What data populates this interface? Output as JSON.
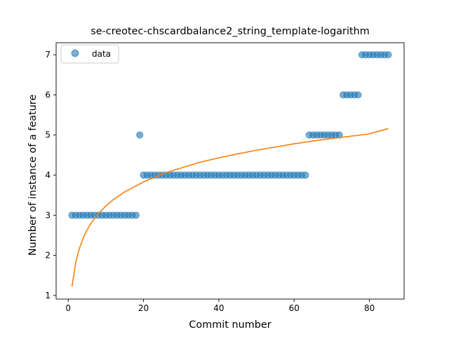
{
  "chart_data": {
    "type": "scatter",
    "title": "se-creotec-chscardbalance2_string_template-logarithm",
    "xlabel": "Commit number",
    "ylabel": "Number of instance of a feature",
    "xlim": [
      -3.2,
      89.2
    ],
    "ylim": [
      0.91,
      7.3
    ],
    "xticks": [
      0,
      20,
      40,
      60,
      80
    ],
    "yticks": [
      1,
      2,
      3,
      4,
      5,
      6,
      7
    ],
    "legend": {
      "position": "top-left",
      "entries": [
        {
          "label": "data",
          "marker": "circle",
          "color": "#1f77b4"
        }
      ]
    },
    "series": [
      {
        "name": "data",
        "kind": "scatter",
        "color": "#1f77b4",
        "x": [
          1,
          2,
          3,
          4,
          5,
          6,
          7,
          8,
          9,
          10,
          11,
          12,
          13,
          14,
          15,
          16,
          17,
          18,
          19,
          20,
          21,
          22,
          23,
          24,
          25,
          26,
          27,
          28,
          29,
          30,
          31,
          32,
          33,
          34,
          35,
          36,
          37,
          38,
          39,
          40,
          41,
          42,
          43,
          44,
          45,
          46,
          47,
          48,
          49,
          50,
          51,
          52,
          53,
          54,
          55,
          56,
          57,
          58,
          59,
          60,
          61,
          62,
          63,
          64,
          65,
          66,
          67,
          68,
          69,
          70,
          71,
          72,
          73,
          74,
          75,
          76,
          77,
          78,
          79,
          80,
          81,
          82,
          83,
          84,
          85
        ],
        "y": [
          3,
          3,
          3,
          3,
          3,
          3,
          3,
          3,
          3,
          3,
          3,
          3,
          3,
          3,
          3,
          3,
          3,
          3,
          5,
          4,
          4,
          4,
          4,
          4,
          4,
          4,
          4,
          4,
          4,
          4,
          4,
          4,
          4,
          4,
          4,
          4,
          4,
          4,
          4,
          4,
          4,
          4,
          4,
          4,
          4,
          4,
          4,
          4,
          4,
          4,
          4,
          4,
          4,
          4,
          4,
          4,
          4,
          4,
          4,
          4,
          4,
          4,
          4,
          5,
          5,
          5,
          5,
          5,
          5,
          5,
          5,
          5,
          6,
          6,
          6,
          6,
          6,
          7,
          7,
          7,
          7,
          7,
          7,
          7,
          7
        ]
      },
      {
        "name": "",
        "kind": "line",
        "color": "#ff7f0e",
        "x": [
          1,
          2,
          3,
          4,
          5,
          6,
          7,
          8,
          10,
          12,
          15,
          20,
          25,
          30,
          35,
          40,
          45,
          50,
          55,
          60,
          65,
          70,
          75,
          80,
          85
        ],
        "y": [
          1.22,
          1.82,
          2.18,
          2.43,
          2.63,
          2.79,
          2.92,
          3.04,
          3.23,
          3.39,
          3.58,
          3.83,
          4.03,
          4.18,
          4.32,
          4.43,
          4.53,
          4.62,
          4.7,
          4.78,
          4.85,
          4.91,
          4.97,
          5.03,
          5.16
        ]
      }
    ]
  }
}
